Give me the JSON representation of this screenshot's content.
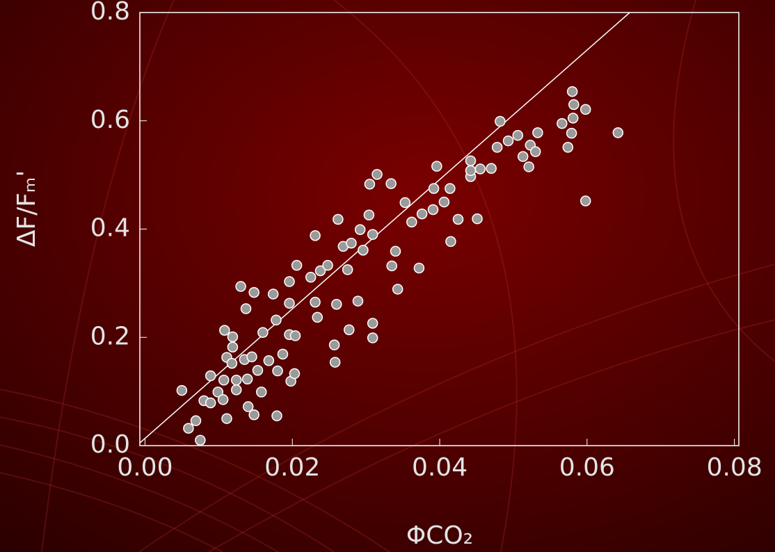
{
  "chart_data": {
    "type": "scatter",
    "xlabel": "ΦCO₂",
    "ylabel": "ΔF/Fₘ'",
    "xlim": [
      -0.0007,
      0.0806
    ],
    "ylim": [
      0,
      0.8
    ],
    "xticks": [
      {
        "value": 0,
        "label": "0.00"
      },
      0.02,
      0.04,
      0.06,
      0.08
    ],
    "yticks": [
      {
        "value": 0,
        "label": "0.0"
      },
      0.2,
      0.4,
      0.6,
      0.8
    ],
    "color": "#9a9a9a",
    "fit_line": {
      "x": [
        -0.0007,
        0.0658
      ],
      "y": [
        0.005,
        0.8
      ],
      "color": "#ffffff"
    },
    "x": [
      0.005,
      0.0059,
      0.0069,
      0.0075,
      0.008,
      0.0089,
      0.0089,
      0.0099,
      0.0106,
      0.0107,
      0.0108,
      0.0111,
      0.0111,
      0.0118,
      0.0119,
      0.0119,
      0.0124,
      0.0124,
      0.013,
      0.0135,
      0.0137,
      0.0139,
      0.014,
      0.0145,
      0.0148,
      0.0148,
      0.0153,
      0.0158,
      0.016,
      0.0168,
      0.0174,
      0.0178,
      0.0179,
      0.018,
      0.0187,
      0.0196,
      0.0196,
      0.0196,
      0.0198,
      0.0203,
      0.0204,
      0.0206,
      0.0225,
      0.0231,
      0.0231,
      0.0234,
      0.0238,
      0.0248,
      0.0257,
      0.0258,
      0.026,
      0.0262,
      0.0269,
      0.0275,
      0.0277,
      0.028,
      0.0289,
      0.0292,
      0.0296,
      0.0304,
      0.0305,
      0.0309,
      0.0309,
      0.0309,
      0.0315,
      0.0334,
      0.0335,
      0.034,
      0.0343,
      0.0353,
      0.0362,
      0.0372,
      0.0376,
      0.0391,
      0.0392,
      0.0396,
      0.0406,
      0.0414,
      0.0415,
      0.0425,
      0.0442,
      0.0442,
      0.0442,
      0.0451,
      0.0455,
      0.047,
      0.0478,
      0.0482,
      0.0493,
      0.0506,
      0.0513,
      0.0521,
      0.0523,
      0.053,
      0.0533,
      0.0566,
      0.0574,
      0.0579,
      0.058,
      0.0581,
      0.0582,
      0.0598,
      0.0598,
      0.0642
    ],
    "values": [
      0.102,
      0.032,
      0.046,
      0.01,
      0.083,
      0.129,
      0.079,
      0.099,
      0.085,
      0.121,
      0.213,
      0.163,
      0.05,
      0.152,
      0.201,
      0.182,
      0.103,
      0.121,
      0.294,
      0.159,
      0.253,
      0.123,
      0.072,
      0.164,
      0.283,
      0.057,
      0.139,
      0.099,
      0.209,
      0.157,
      0.28,
      0.232,
      0.055,
      0.138,
      0.169,
      0.303,
      0.263,
      0.205,
      0.119,
      0.133,
      0.203,
      0.333,
      0.311,
      0.388,
      0.265,
      0.237,
      0.323,
      0.333,
      0.186,
      0.154,
      0.261,
      0.418,
      0.368,
      0.325,
      0.214,
      0.374,
      0.267,
      0.399,
      0.361,
      0.426,
      0.483,
      0.226,
      0.199,
      0.39,
      0.501,
      0.484,
      0.332,
      0.359,
      0.289,
      0.449,
      0.413,
      0.328,
      0.428,
      0.436,
      0.475,
      0.516,
      0.45,
      0.475,
      0.377,
      0.418,
      0.526,
      0.497,
      0.508,
      0.419,
      0.511,
      0.512,
      0.551,
      0.599,
      0.563,
      0.573,
      0.534,
      0.515,
      0.555,
      0.543,
      0.578,
      0.595,
      0.551,
      0.577,
      0.654,
      0.605,
      0.63,
      0.621,
      0.452,
      0.578
    ]
  }
}
